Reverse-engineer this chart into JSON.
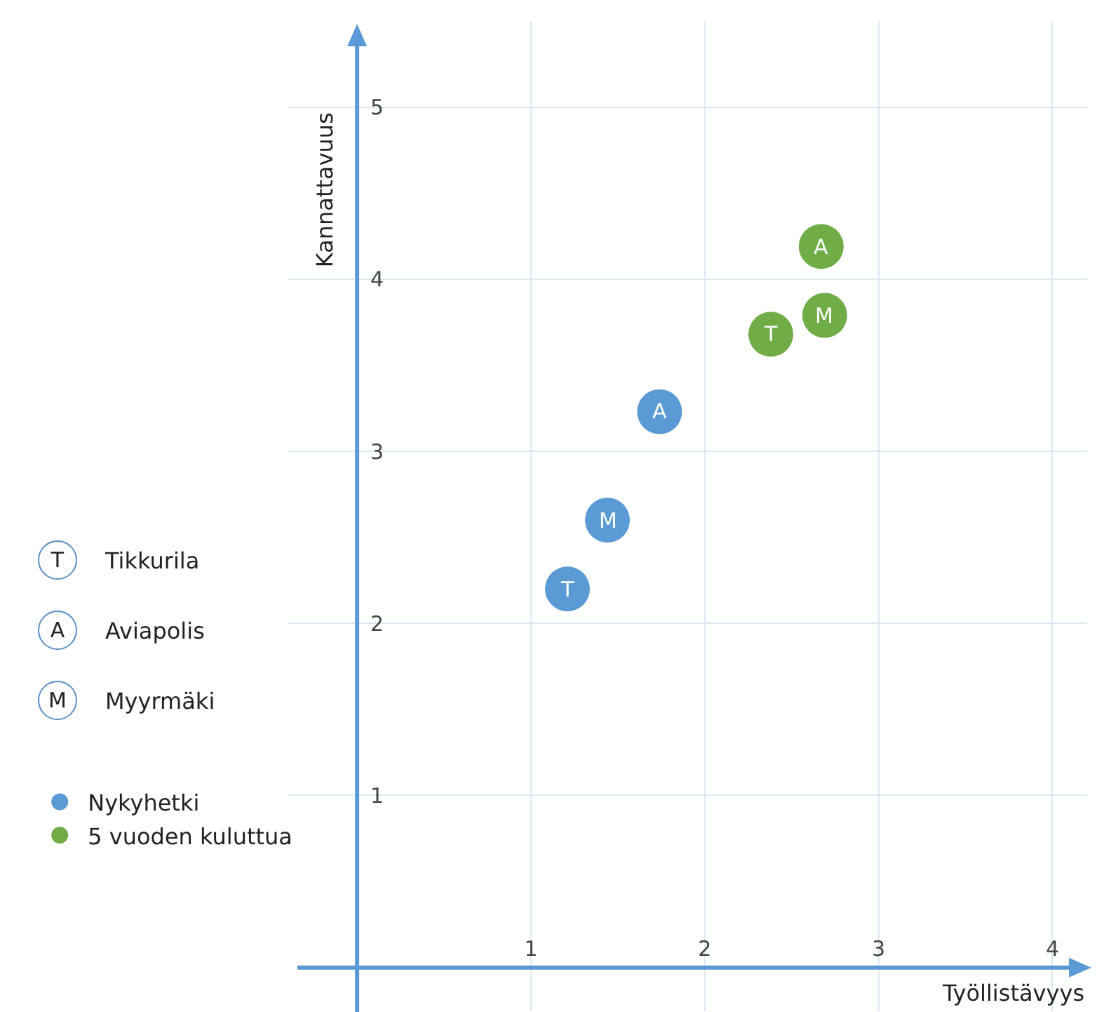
{
  "chart_data": {
    "type": "scatter",
    "xlabel": "Työllistävyys",
    "ylabel": "Kannattavuus",
    "series": [
      {
        "name": "Nykyhetki",
        "color": "#5b9bd5",
        "x": [
          1.21,
          1.44,
          1.74
        ],
        "values": [
          2.2,
          2.6,
          3.23
        ]
      },
      {
        "name": "5 vuoden kuluttua",
        "color": "#70ad47",
        "x": [
          2.38,
          2.69,
          2.67
        ],
        "values": [
          3.68,
          3.79,
          4.19
        ]
      }
    ],
    "xlim": [
      -0.4,
      4.2
    ],
    "ylim": [
      -0.25,
      5.5
    ],
    "xticks": [
      1,
      2,
      3,
      4
    ],
    "yticks": [
      1,
      2,
      3,
      4,
      5
    ],
    "grid": true,
    "legend": "left",
    "marker": "circle",
    "annotations": [
      {
        "text": "T",
        "x": 1.21,
        "y": 2.2
      },
      {
        "text": "M",
        "x": 1.44,
        "y": 2.6
      },
      {
        "text": "A",
        "x": 1.74,
        "y": 3.23
      },
      {
        "text": "T",
        "x": 2.38,
        "y": 3.68
      },
      {
        "text": "M",
        "x": 2.69,
        "y": 3.79
      },
      {
        "text": "A",
        "x": 2.67,
        "y": 4.19
      },
      "T",
      "Tikkurila",
      "A",
      "Aviapolis",
      "M",
      "Myyrmäki"
    ]
  }
}
